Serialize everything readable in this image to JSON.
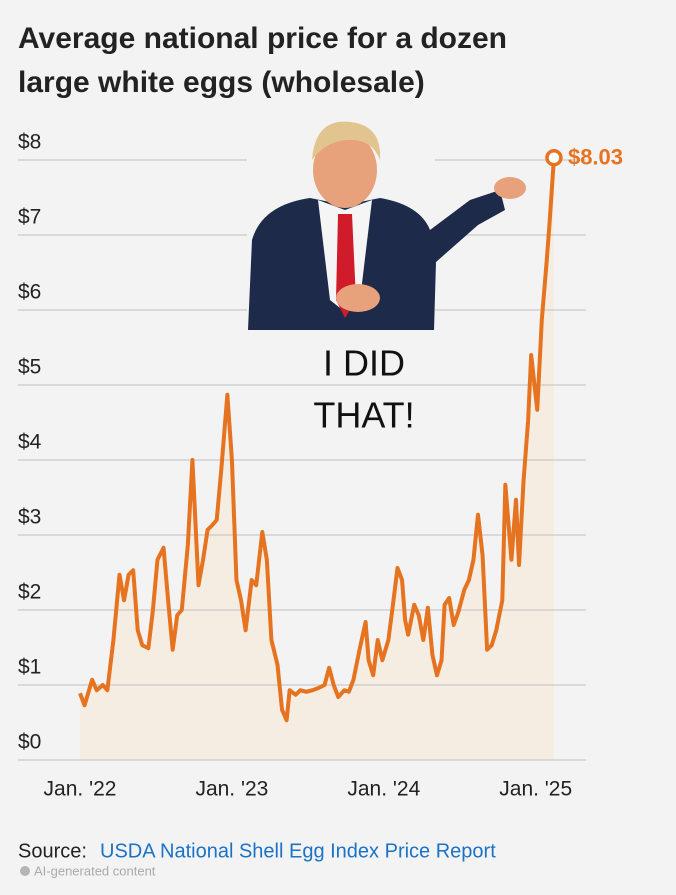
{
  "chart_data": {
    "type": "line",
    "title_lines": [
      "Average national price for a dozen",
      "large white eggs (wholesale)"
    ],
    "annotation_lines": [
      "I DID",
      "THAT!"
    ],
    "source_label": "Source:",
    "source": "USDA National Shell Egg Index Price Report",
    "footer": "AI-generated content",
    "end_label": "$8.03",
    "xlim": [
      2022,
      2025.14
    ],
    "xticks": [
      {
        "value": 2022,
        "label": "Jan. '22"
      },
      {
        "value": 2023,
        "label": "Jan. '23"
      },
      {
        "value": 2024,
        "label": "Jan. '24"
      },
      {
        "value": 2025,
        "label": "Jan. '25"
      }
    ],
    "ylim": [
      0,
      8
    ],
    "yticks": [
      {
        "value": 0,
        "label": "$0"
      },
      {
        "value": 1,
        "label": "$1"
      },
      {
        "value": 2,
        "label": "$2"
      },
      {
        "value": 3,
        "label": "$3"
      },
      {
        "value": 4,
        "label": "$4"
      },
      {
        "value": 5,
        "label": "$5"
      },
      {
        "value": 6,
        "label": "$6"
      },
      {
        "value": 7,
        "label": "$7"
      },
      {
        "value": 8,
        "label": "$8"
      }
    ],
    "grid": true,
    "x": [
      2022.0,
      2022.03,
      2022.08,
      2022.11,
      2022.15,
      2022.18,
      2022.22,
      2022.26,
      2022.29,
      2022.32,
      2022.35,
      2022.38,
      2022.41,
      2022.45,
      2022.48,
      2022.51,
      2022.55,
      2022.58,
      2022.61,
      2022.64,
      2022.67,
      2022.71,
      2022.74,
      2022.78,
      2022.81,
      2022.84,
      2022.87,
      2022.9,
      2022.93,
      2022.97,
      2023.0,
      2023.03,
      2023.06,
      2023.09,
      2023.13,
      2023.16,
      2023.2,
      2023.23,
      2023.26,
      2023.3,
      2023.33,
      2023.36,
      2023.38,
      2023.42,
      2023.45,
      2023.49,
      2023.53,
      2023.57,
      2023.61,
      2023.64,
      2023.67,
      2023.7,
      2023.74,
      2023.77,
      2023.8,
      2023.84,
      2023.88,
      2023.9,
      2023.93,
      2023.96,
      2023.99,
      2024.03,
      2024.06,
      2024.09,
      2024.12,
      2024.14,
      2024.16,
      2024.2,
      2024.23,
      2024.26,
      2024.29,
      2024.32,
      2024.35,
      2024.38,
      2024.4,
      2024.43,
      2024.46,
      2024.49,
      2024.53,
      2024.56,
      2024.59,
      2024.62,
      2024.65,
      2024.68,
      2024.71,
      2024.74,
      2024.78,
      2024.8,
      2024.84,
      2024.87,
      2024.89,
      2024.92,
      2024.95,
      2024.97,
      2025.01,
      2025.04,
      2025.07,
      2025.09,
      2025.12
    ],
    "series": [
      {
        "color": "#e5731f",
        "fill": "#f6ede2",
        "values": [
          0.89,
          0.73,
          1.07,
          0.93,
          1.0,
          0.93,
          1.6,
          2.47,
          2.13,
          2.47,
          2.53,
          1.73,
          1.53,
          1.49,
          2.0,
          2.67,
          2.83,
          2.13,
          1.47,
          1.93,
          2.0,
          2.87,
          4.0,
          2.33,
          2.67,
          3.07,
          3.13,
          3.2,
          3.87,
          4.87,
          4.0,
          2.4,
          2.13,
          1.73,
          2.4,
          2.33,
          3.04,
          2.67,
          1.6,
          1.27,
          0.67,
          0.53,
          0.93,
          0.87,
          0.93,
          0.91,
          0.93,
          0.96,
          1.0,
          1.23,
          1.0,
          0.84,
          0.93,
          0.91,
          1.07,
          1.47,
          1.84,
          1.33,
          1.13,
          1.6,
          1.33,
          1.6,
          2.07,
          2.56,
          2.4,
          1.87,
          1.67,
          2.07,
          1.93,
          1.6,
          2.03,
          1.4,
          1.13,
          1.33,
          2.07,
          2.16,
          1.8,
          1.97,
          2.27,
          2.4,
          2.67,
          3.27,
          2.73,
          1.47,
          1.53,
          1.73,
          2.13,
          3.67,
          2.67,
          3.47,
          2.6,
          3.73,
          4.53,
          5.4,
          4.67,
          5.87,
          6.6,
          7.13,
          8.03
        ]
      }
    ]
  }
}
